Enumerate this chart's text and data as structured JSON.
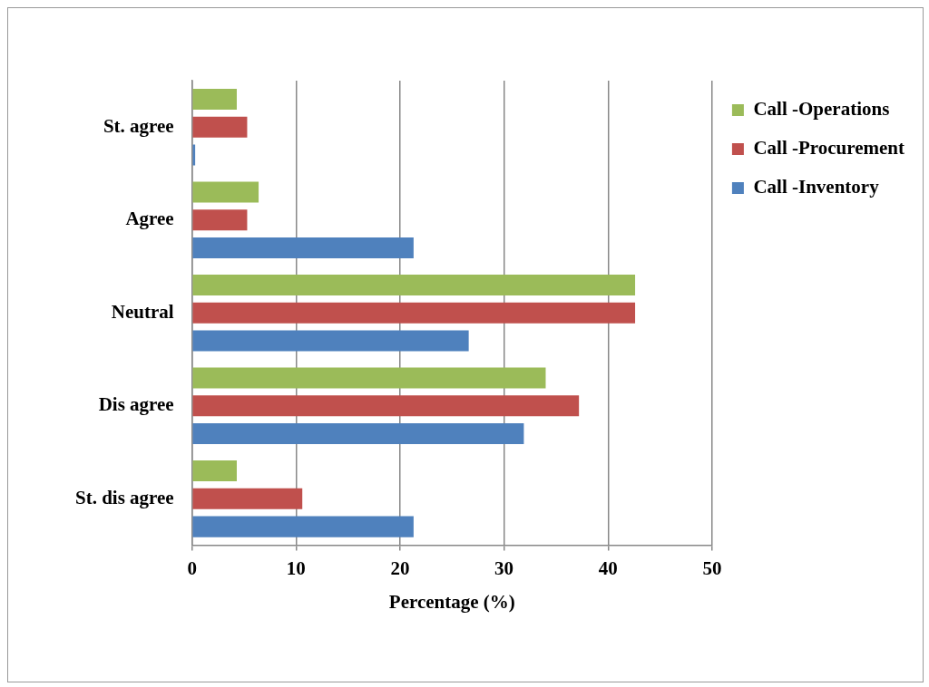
{
  "chart_data": {
    "type": "bar",
    "orientation": "horizontal",
    "xlabel": "Percentage (%)",
    "categories": [
      "St. agree",
      "Agree",
      "Neutral",
      "Dis agree",
      "St. dis agree"
    ],
    "series": [
      {
        "name": "Call -Operations",
        "color": "#9bbb59",
        "values": [
          4.3,
          6.4,
          42.6,
          34.0,
          4.3
        ]
      },
      {
        "name": "Call -Procurement",
        "color": "#c0504d",
        "values": [
          5.3,
          5.3,
          42.6,
          37.2,
          10.6
        ]
      },
      {
        "name": "Call -Inventory",
        "color": "#4f81bd",
        "values": [
          0.3,
          21.3,
          26.6,
          31.9,
          21.3
        ]
      }
    ],
    "xlim": [
      0,
      50
    ],
    "xticks": [
      0,
      10,
      20,
      30,
      40,
      50
    ],
    "grid": "x",
    "legend": "right"
  }
}
